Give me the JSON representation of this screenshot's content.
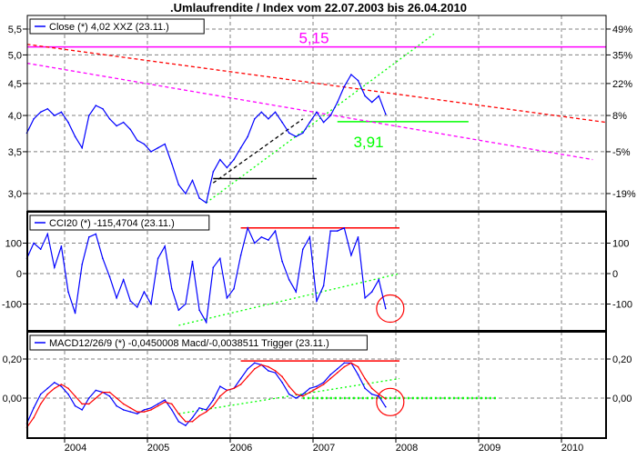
{
  "title": ".Umlaufrendite / Index vom 22.07.2003 bis 26.04.2010",
  "chart_data": [
    {
      "type": "line",
      "panel": "price",
      "legend": "Close (*) 4,02 XXZ (23.11.)",
      "y_scale": "log",
      "ylim": [
        2.75,
        5.8
      ],
      "y_ticks": [
        "5,5",
        "5,0",
        "4,5",
        "4,0",
        "3,5",
        "3,0"
      ],
      "y_tick_values": [
        5.5,
        5.0,
        4.5,
        4.0,
        3.5,
        3.0
      ],
      "y2_ticks": [
        "49%",
        "35%",
        "22%",
        "8%",
        "-5%",
        "-19%"
      ],
      "grid": true,
      "series": [
        {
          "color": "#0000ff",
          "x": [
            "2003-07",
            "2003-08",
            "2003-09",
            "2003-10",
            "2003-11",
            "2003-12",
            "2004-01",
            "2004-02",
            "2004-03",
            "2004-04",
            "2004-05",
            "2004-06",
            "2004-07",
            "2004-08",
            "2004-09",
            "2004-10",
            "2004-11",
            "2004-12",
            "2005-01",
            "2005-02",
            "2005-03",
            "2005-04",
            "2005-05",
            "2005-06",
            "2005-07",
            "2005-08",
            "2005-09",
            "2005-10",
            "2005-11",
            "2005-12",
            "2006-01",
            "2006-02",
            "2006-03",
            "2006-04",
            "2006-05",
            "2006-06",
            "2006-07",
            "2006-08",
            "2006-09",
            "2006-10",
            "2006-11",
            "2006-12",
            "2007-01",
            "2007-02",
            "2007-03",
            "2007-04",
            "2007-05",
            "2007-06",
            "2007-07",
            "2007-08",
            "2007-09",
            "2007-10",
            "2007-11"
          ],
          "y": [
            3.75,
            3.95,
            4.05,
            4.1,
            4.0,
            4.05,
            3.9,
            3.7,
            3.55,
            4.0,
            4.15,
            4.1,
            3.95,
            3.85,
            3.9,
            3.8,
            3.65,
            3.6,
            3.5,
            3.55,
            3.6,
            3.35,
            3.1,
            3.0,
            3.15,
            2.95,
            2.9,
            3.25,
            3.4,
            3.3,
            3.4,
            3.55,
            3.7,
            3.95,
            4.05,
            3.95,
            4.05,
            3.9,
            3.75,
            3.7,
            3.75,
            3.9,
            4.05,
            3.9,
            4.0,
            4.2,
            4.45,
            4.65,
            4.55,
            4.3,
            4.2,
            4.3,
            4.02
          ]
        }
      ],
      "annotations": [
        {
          "kind": "hline",
          "label": "5,15",
          "value": 5.15,
          "color": "#ff00ff"
        },
        {
          "kind": "hline-segment",
          "label": "3,91",
          "value": 3.91,
          "from": "2007-04",
          "to": "2008-11",
          "color": "#00ff00"
        },
        {
          "kind": "trendline",
          "from": [
            "2003-07",
            5.2
          ],
          "to": [
            "2010-07",
            3.9
          ],
          "color": "#ff0000",
          "style": "dashed"
        },
        {
          "kind": "trendline",
          "from": [
            "2003-07",
            4.85
          ],
          "to": [
            "2010-05",
            3.4
          ],
          "color": "#ff00ff",
          "style": "dashed"
        },
        {
          "kind": "trendline",
          "from": [
            "2005-09",
            2.9
          ],
          "to": [
            "2008-06",
            5.4
          ],
          "color": "#00ff00",
          "style": "dotted"
        },
        {
          "kind": "trendline",
          "from": [
            "2005-10",
            3.12
          ],
          "to": [
            "2006-11",
            3.95
          ],
          "color": "#000000",
          "style": "dashed"
        },
        {
          "kind": "hline-segment",
          "value": 3.17,
          "from": "2005-10",
          "to": "2007-01",
          "color": "#000000"
        }
      ]
    },
    {
      "type": "line",
      "panel": "cci",
      "legend": "CCI20 (*) -115,4704 (23.11.)",
      "ylim": [
        -205,
        195
      ],
      "y_ticks": [
        "100",
        "0",
        "-100"
      ],
      "y_tick_values": [
        100,
        0,
        -100
      ],
      "grid": true,
      "series": [
        {
          "color": "#0000ff",
          "y": [
            50,
            100,
            80,
            130,
            20,
            90,
            -60,
            -130,
            30,
            120,
            130,
            50,
            -10,
            -80,
            -20,
            -90,
            -110,
            -60,
            -100,
            50,
            90,
            -50,
            -120,
            -100,
            40,
            -120,
            -160,
            20,
            50,
            -80,
            -50,
            60,
            150,
            100,
            120,
            110,
            140,
            40,
            -20,
            -60,
            80,
            120,
            -90,
            -40,
            140,
            140,
            150,
            60,
            120,
            -80,
            -60,
            -20,
            -115
          ]
        }
      ],
      "annotations": [
        {
          "kind": "hline-segment",
          "value": 150,
          "from": "2006-02",
          "to": "2008-01",
          "color": "#ff0000"
        },
        {
          "kind": "trendline",
          "from": [
            "2005-05",
            -170
          ],
          "to": [
            "2008-01",
            0
          ],
          "color": "#00ff00",
          "style": "dotted"
        },
        {
          "kind": "circle",
          "at": [
            "2007-11",
            -115
          ],
          "color": "#ff0000"
        }
      ]
    },
    {
      "type": "line",
      "panel": "macd",
      "legend": "MACD12/26/9 (*) -0,0450008 Macd/-0,0038511 Trigger (23.11.)",
      "ylim": [
        -0.2,
        0.25
      ],
      "y_ticks": [
        "0,20",
        "0,00"
      ],
      "y_tick_values": [
        0.2,
        0.0
      ],
      "grid": true,
      "series": [
        {
          "name": "Macd",
          "color": "#0000ff",
          "y": [
            -0.13,
            -0.05,
            0.02,
            0.05,
            0.08,
            0.06,
            0.02,
            -0.04,
            -0.06,
            0.0,
            0.04,
            0.03,
            0.01,
            -0.04,
            -0.06,
            -0.07,
            -0.08,
            -0.06,
            -0.05,
            -0.03,
            -0.01,
            -0.06,
            -0.12,
            -0.14,
            -0.1,
            -0.05,
            -0.06,
            -0.01,
            0.06,
            0.04,
            0.05,
            0.1,
            0.15,
            0.18,
            0.17,
            0.14,
            0.13,
            0.08,
            0.02,
            0.0,
            0.02,
            0.05,
            0.06,
            0.08,
            0.12,
            0.15,
            0.18,
            0.18,
            0.12,
            0.05,
            0.02,
            0.01,
            -0.045
          ]
        },
        {
          "name": "Trigger",
          "color": "#ff0000",
          "y": [
            -0.15,
            -0.1,
            -0.03,
            0.02,
            0.05,
            0.07,
            0.05,
            0.01,
            -0.03,
            -0.03,
            0.0,
            0.03,
            0.03,
            0.0,
            -0.03,
            -0.05,
            -0.07,
            -0.07,
            -0.06,
            -0.04,
            -0.02,
            -0.03,
            -0.08,
            -0.12,
            -0.12,
            -0.09,
            -0.07,
            -0.04,
            0.01,
            0.04,
            0.05,
            0.07,
            0.11,
            0.15,
            0.17,
            0.16,
            0.14,
            0.11,
            0.06,
            0.02,
            0.01,
            0.03,
            0.05,
            0.07,
            0.1,
            0.13,
            0.16,
            0.18,
            0.16,
            0.1,
            0.05,
            0.02,
            -0.004
          ]
        }
      ],
      "annotations": [
        {
          "kind": "hline-segment",
          "value": 0.19,
          "from": "2006-02",
          "to": "2008-01",
          "color": "#ff0000"
        },
        {
          "kind": "trendline",
          "from": [
            "2005-05",
            -0.08
          ],
          "to": [
            "2008-01",
            0.1
          ],
          "color": "#00ff00",
          "style": "dotted"
        },
        {
          "kind": "hline-segment",
          "value": 0.0,
          "from": "2006-11",
          "to": "2009-03",
          "color": "#00ff00",
          "style": "dotted"
        },
        {
          "kind": "circle",
          "at": [
            "2007-11",
            -0.02
          ],
          "color": "#ff0000"
        }
      ]
    }
  ],
  "x_axis": {
    "tick_labels": [
      "2004",
      "2005",
      "2006",
      "2007",
      "2008",
      "2009",
      "2010"
    ]
  }
}
